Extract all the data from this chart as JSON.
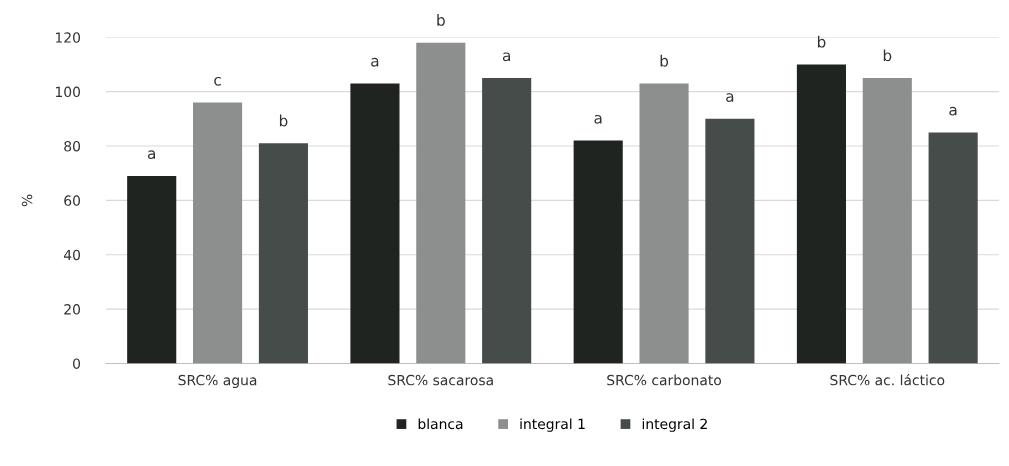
{
  "chart_data": {
    "type": "bar",
    "ylabel": "%",
    "categories": [
      "SRC% agua",
      "SRC% sacarosa",
      "SRC% carbonato",
      "SRC% ac. láctico"
    ],
    "series": [
      {
        "name": "blanca",
        "color": "#1f2421",
        "values": [
          69,
          103,
          82,
          110
        ],
        "value_labels": [
          "a",
          "a",
          "a",
          "b"
        ]
      },
      {
        "name": "integral 1",
        "color": "#8c8f8e",
        "values": [
          96,
          118,
          103,
          105
        ],
        "value_labels": [
          "c",
          "b",
          "b",
          "b"
        ]
      },
      {
        "name": "integral 2",
        "color": "#454c4a",
        "values": [
          81,
          105,
          90,
          85
        ],
        "value_labels": [
          "b",
          "a",
          "a",
          "a"
        ]
      }
    ],
    "ylim": [
      0,
      120
    ],
    "yticks": [
      0,
      20,
      40,
      60,
      80,
      100,
      120
    ],
    "grid": "y",
    "legend": "bottom"
  }
}
